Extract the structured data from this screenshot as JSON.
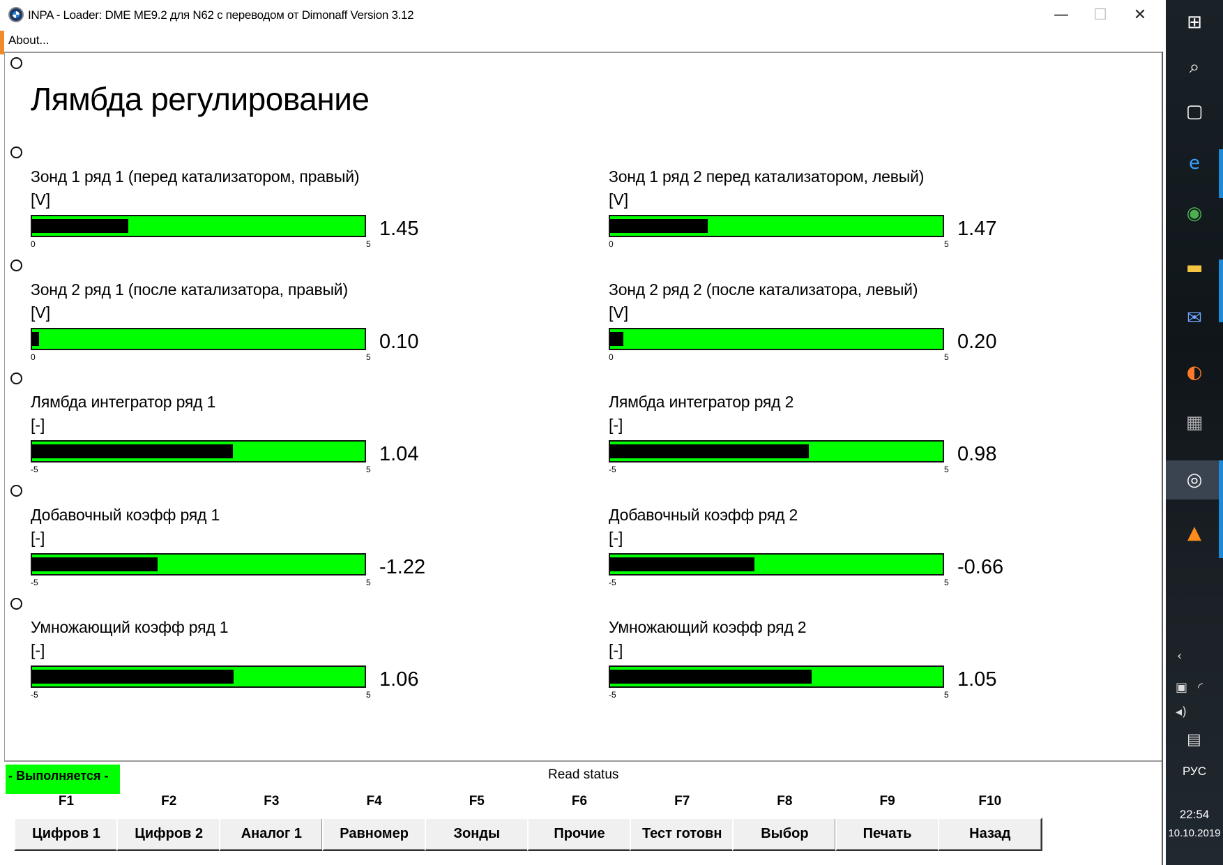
{
  "window": {
    "title": "INPA - Loader:  DME ME9.2 для N62 с переводом от Dimonaff Version 3.12",
    "minimize": "—",
    "maximize": "☐",
    "close": "✕",
    "menu_about": "About..."
  },
  "page_title": "Лямбда регулирование",
  "gauges": [
    {
      "label": "Зонд 1 ряд 1 (перед катализатором, правый)",
      "unit": "[V]",
      "value": "1.45",
      "min": "0",
      "max": "5",
      "level": 1.45,
      "range": [
        0,
        5
      ]
    },
    {
      "label": "Зонд 1 ряд 2 перед катализатором, левый)",
      "unit": "[V]",
      "value": "1.47",
      "min": "0",
      "max": "5",
      "level": 1.47,
      "range": [
        0,
        5
      ]
    },
    {
      "label": "Зонд 2 ряд 1 (после катализатора, правый)",
      "unit": "[V]",
      "value": "0.10",
      "min": "0",
      "max": "5",
      "level": 0.1,
      "range": [
        0,
        5
      ]
    },
    {
      "label": "Зонд 2 ряд 2 (после катализатора, левый)",
      "unit": "[V]",
      "value": "0.20",
      "min": "0",
      "max": "5",
      "level": 0.2,
      "range": [
        0,
        5
      ]
    },
    {
      "label": "Лямбда интегратор ряд 1",
      "unit": "[-]",
      "value": "1.04",
      "min": "-5",
      "max": "5",
      "level": 1.04,
      "range": [
        -5,
        5
      ]
    },
    {
      "label": "Лямбда интегратор ряд 2",
      "unit": "[-]",
      "value": "0.98",
      "min": "-5",
      "max": "5",
      "level": 0.98,
      "range": [
        -5,
        5
      ]
    },
    {
      "label": "Добавочный коэфф ряд 1",
      "unit": "[-]",
      "value": "-1.22",
      "min": "-5",
      "max": "5",
      "level": -1.22,
      "range": [
        -5,
        5
      ]
    },
    {
      "label": "Добавочный коэфф ряд 2",
      "unit": "[-]",
      "value": "-0.66",
      "min": "-5",
      "max": "5",
      "level": -0.66,
      "range": [
        -5,
        5
      ]
    },
    {
      "label": "Умножающий коэфф ряд 1",
      "unit": "[-]",
      "value": "1.06",
      "min": "-5",
      "max": "5",
      "level": 1.06,
      "range": [
        -5,
        5
      ]
    },
    {
      "label": "Умножающий коэфф ряд 2",
      "unit": "[-]",
      "value": "1.05",
      "min": "-5",
      "max": "5",
      "level": 1.05,
      "range": [
        -5,
        5
      ]
    }
  ],
  "status": {
    "badge": "Выполняется",
    "text": "Read status"
  },
  "fkeys": [
    {
      "key": "F1",
      "label": "Цифров 1"
    },
    {
      "key": "F2",
      "label": "Цифров 2"
    },
    {
      "key": "F3",
      "label": "Аналог 1"
    },
    {
      "key": "F4",
      "label": "Равномер"
    },
    {
      "key": "F5",
      "label": "Зонды"
    },
    {
      "key": "F6",
      "label": "Прочие"
    },
    {
      "key": "F7",
      "label": "Тест готовн"
    },
    {
      "key": "F8",
      "label": "Выбор"
    },
    {
      "key": "F9",
      "label": "Печать"
    },
    {
      "key": "F10",
      "label": "Назад"
    }
  ],
  "taskbar": {
    "icons": [
      "windows-start-icon",
      "search-icon",
      "task-view-icon",
      "internet-explorer-icon",
      "chrome-icon",
      "file-explorer-icon",
      "thunderbird-icon",
      "firefox-icon",
      "ista-icon",
      "inpa-bmw-icon",
      "foxit-reader-icon"
    ],
    "language": "РУС",
    "time": "22:54",
    "date": "10.10.2019",
    "colors": {
      "accent": "#1e8ad6",
      "gauge_fill": "#00ff00"
    }
  }
}
